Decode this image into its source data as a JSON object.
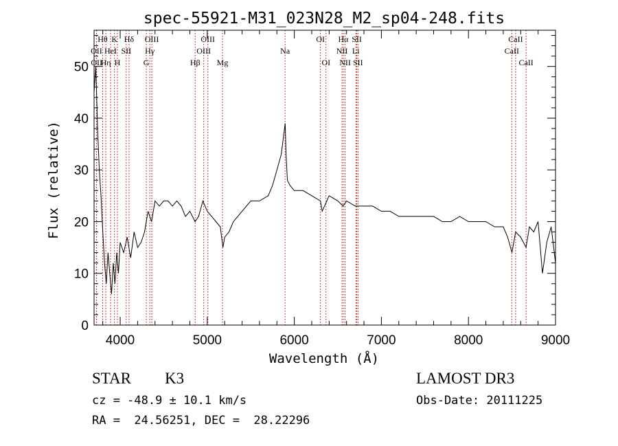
{
  "chart_data": {
    "type": "line",
    "title": "spec-55921-M31_023N28_M2_sp04-248.fits",
    "xlabel": "Wavelength (Å)",
    "ylabel": "Flux (relative)",
    "xlim": [
      3700,
      9000
    ],
    "ylim": [
      0,
      57
    ],
    "xticks": [
      4000,
      5000,
      6000,
      7000,
      8000,
      9000
    ],
    "yticks": [
      0,
      10,
      20,
      30,
      40,
      50
    ],
    "xtick_labels": [
      "4000",
      "5000",
      "6000",
      "7000",
      "8000",
      "9000"
    ],
    "ytick_labels": [
      "0",
      "10",
      "20",
      "30",
      "40",
      "50"
    ],
    "series": [
      {
        "name": "flux",
        "x": [
          3700,
          3720,
          3740,
          3760,
          3780,
          3800,
          3820,
          3840,
          3860,
          3880,
          3900,
          3920,
          3940,
          3960,
          3980,
          4000,
          4040,
          4080,
          4120,
          4160,
          4200,
          4240,
          4280,
          4320,
          4360,
          4400,
          4450,
          4500,
          4550,
          4600,
          4650,
          4700,
          4750,
          4800,
          4860,
          4900,
          4950,
          5000,
          5050,
          5100,
          5150,
          5180,
          5200,
          5250,
          5300,
          5400,
          5500,
          5600,
          5700,
          5750,
          5800,
          5850,
          5880,
          5895,
          5905,
          5920,
          5950,
          6000,
          6100,
          6200,
          6300,
          6320,
          6400,
          6500,
          6560,
          6600,
          6700,
          6800,
          6900,
          7000,
          7100,
          7200,
          7300,
          7400,
          7500,
          7600,
          7700,
          7800,
          7900,
          8000,
          8100,
          8200,
          8300,
          8400,
          8450,
          8500,
          8542,
          8600,
          8662,
          8700,
          8750,
          8800,
          8850,
          8900,
          8950,
          9000
        ],
        "y": [
          45,
          50,
          38,
          30,
          25,
          18,
          12,
          8,
          14,
          10,
          6,
          12,
          8,
          14,
          10,
          16,
          14,
          17,
          13,
          18,
          15,
          16,
          18,
          22,
          20,
          24,
          23,
          24,
          24,
          23,
          24,
          23,
          21,
          22,
          20,
          21,
          24,
          22,
          21,
          20,
          19,
          15,
          17,
          18,
          20,
          22,
          24,
          24,
          25,
          27,
          30,
          33,
          37,
          39,
          33,
          28,
          27,
          26,
          26,
          25,
          24,
          22,
          25,
          24,
          23,
          24,
          23,
          23,
          23,
          22,
          22,
          21,
          21,
          21,
          21,
          21,
          20,
          20,
          21,
          20,
          20,
          20,
          19,
          19,
          17,
          14,
          18,
          17,
          15,
          19,
          18,
          20,
          10,
          16,
          19,
          12
        ]
      }
    ],
    "lines": [
      {
        "name": "OII",
        "x": 3727,
        "row": 2
      },
      {
        "name": "OII",
        "x": 3729,
        "row": 3
      },
      {
        "name": "Hθ",
        "x": 3798,
        "row": 1
      },
      {
        "name": "Hη",
        "x": 3835,
        "row": 3
      },
      {
        "name": "HeI",
        "x": 3889,
        "row": 2
      },
      {
        "name": "K",
        "x": 3934,
        "row": 1
      },
      {
        "name": "H",
        "x": 3968,
        "row": 3
      },
      {
        "name": "SII",
        "x": 4069,
        "row": 2
      },
      {
        "name": "Hδ",
        "x": 4102,
        "row": 1
      },
      {
        "name": "G",
        "x": 4300,
        "row": 3
      },
      {
        "name": "Hγ",
        "x": 4340,
        "row": 2
      },
      {
        "name": "OIII",
        "x": 4363,
        "row": 1
      },
      {
        "name": "Hβ",
        "x": 4861,
        "row": 3
      },
      {
        "name": "OIII",
        "x": 4959,
        "row": 2
      },
      {
        "name": "OIII",
        "x": 5007,
        "row": 1
      },
      {
        "name": "Mg",
        "x": 5175,
        "row": 3
      },
      {
        "name": "Na",
        "x": 5894,
        "row": 2
      },
      {
        "name": "OI",
        "x": 6300,
        "row": 1
      },
      {
        "name": "OI",
        "x": 6364,
        "row": 3
      },
      {
        "name": "NII",
        "x": 6548,
        "row": 2
      },
      {
        "name": "Hα",
        "x": 6563,
        "row": 1
      },
      {
        "name": "NII",
        "x": 6583,
        "row": 3
      },
      {
        "name": "Li",
        "x": 6707,
        "row": 2
      },
      {
        "name": "SII",
        "x": 6717,
        "row": 1
      },
      {
        "name": "SII",
        "x": 6731,
        "row": 3
      },
      {
        "name": "CaII",
        "x": 8498,
        "row": 2
      },
      {
        "name": "CaII",
        "x": 8542,
        "row": 1
      },
      {
        "name": "CaII",
        "x": 8662,
        "row": 3
      }
    ]
  },
  "info": {
    "class": "STAR",
    "subclass": "K3",
    "survey": "LAMOST DR3",
    "cz": "cz = -48.9 ± 10.1 km/s",
    "obs_date": "Obs-Date: 20111225",
    "coords": "RA =  24.56251, DEC =  28.22296"
  }
}
